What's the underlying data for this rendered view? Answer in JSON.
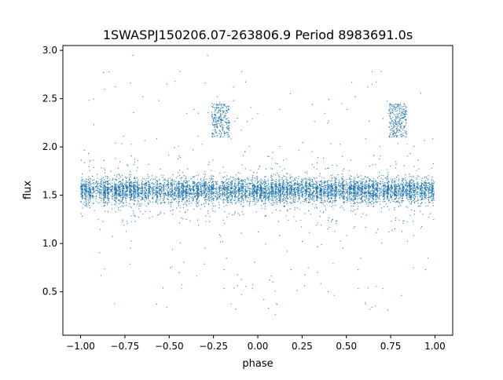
{
  "chart_data": {
    "type": "scatter",
    "title": "1SWASPJ150206.07-263806.9 Period 8983691.0s",
    "xlabel": "phase",
    "ylabel": "flux",
    "xlim": [
      -1.1,
      1.1
    ],
    "ylim": [
      0.05,
      3.05
    ],
    "x_ticks": [
      -1.0,
      -0.75,
      -0.5,
      -0.25,
      0.0,
      0.25,
      0.5,
      0.75,
      1.0
    ],
    "x_tick_labels": [
      "−1.00",
      "−0.75",
      "−0.50",
      "−0.25",
      "0.00",
      "0.25",
      "0.50",
      "0.75",
      "1.00"
    ],
    "y_ticks": [
      0.5,
      1.0,
      1.5,
      2.0,
      2.5,
      3.0
    ],
    "y_tick_labels": [
      "0.5",
      "1.0",
      "1.5",
      "2.0",
      "2.5",
      "3.0"
    ],
    "grid": false,
    "legend": "none",
    "marker_color": "#1f77b4",
    "series": [
      {
        "phase_range": [
          -1.0,
          1.0
        ],
        "flux_core": 1.55,
        "flux_core_spread": [
          1.2,
          1.9
        ],
        "flux_full_range": [
          0.2,
          2.95
        ],
        "mirrored_every_phase": 1.0,
        "clumps": [
          {
            "phase_center": -0.21,
            "phase_width": 0.1,
            "flux_range": [
              2.1,
              2.45
            ]
          },
          {
            "phase_center": 0.79,
            "phase_width": 0.1,
            "flux_range": [
              2.1,
              2.45
            ]
          }
        ]
      }
    ]
  }
}
